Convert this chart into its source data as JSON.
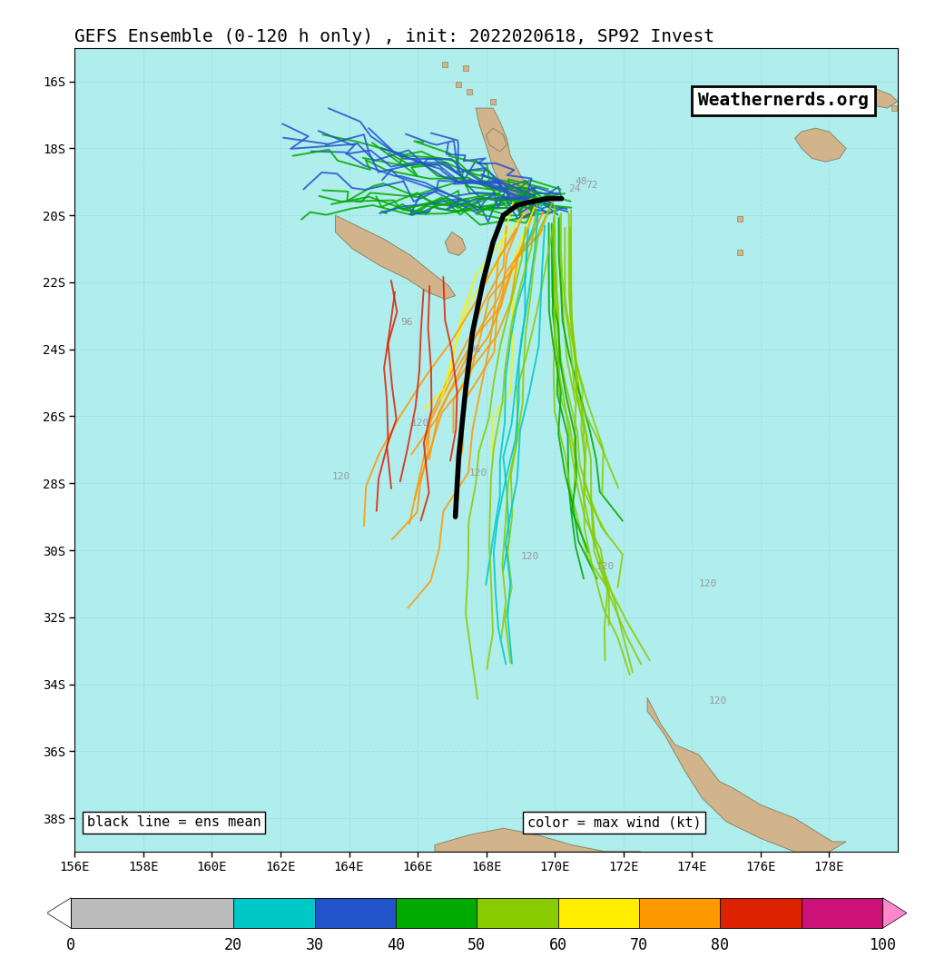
{
  "title": "GEFS Ensemble (0-120 h only) , init: 2022020618, SP92 Invest",
  "title_fontsize": 14,
  "watermark": "Weathernerds.org",
  "legend_left": "black line = ens mean",
  "legend_right": "color = max wind (kt)",
  "bg_color": "#b0eeee",
  "land_color": "#d2b48c",
  "land_edge": "#888866",
  "xlim": [
    156,
    180
  ],
  "ylim": [
    -39,
    -15
  ],
  "xticks": [
    156,
    158,
    160,
    162,
    164,
    166,
    168,
    170,
    172,
    174,
    176,
    178
  ],
  "yticks": [
    -16,
    -18,
    -20,
    -22,
    -24,
    -26,
    -28,
    -30,
    -32,
    -34,
    -36,
    -38
  ],
  "seg_colors": [
    "#BBBBBB",
    "#00C8C8",
    "#2255CC",
    "#00AA00",
    "#88CC00",
    "#FFEE00",
    "#FF9900",
    "#DD2200",
    "#CC1177",
    "#FF88CC"
  ],
  "seg_bounds": [
    0,
    20,
    30,
    40,
    50,
    60,
    70,
    80,
    90,
    100
  ],
  "colorbar_labels": [
    "0",
    "20",
    "30",
    "40",
    "50",
    "60",
    "70",
    "80",
    "100"
  ]
}
